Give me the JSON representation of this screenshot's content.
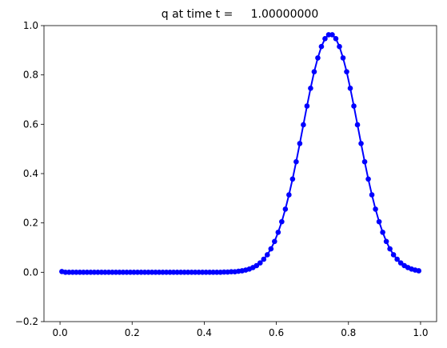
{
  "chart_data": {
    "type": "line",
    "title": "q at time t =     1.00000000",
    "x": [
      0.005,
      0.015,
      0.025,
      0.035,
      0.045,
      0.055,
      0.065,
      0.075,
      0.085,
      0.095,
      0.105,
      0.115,
      0.125,
      0.135,
      0.145,
      0.155,
      0.165,
      0.175,
      0.185,
      0.195,
      0.205,
      0.215,
      0.225,
      0.235,
      0.245,
      0.255,
      0.265,
      0.275,
      0.285,
      0.295,
      0.305,
      0.315,
      0.325,
      0.335,
      0.345,
      0.355,
      0.365,
      0.375,
      0.385,
      0.395,
      0.405,
      0.415,
      0.425,
      0.435,
      0.445,
      0.455,
      0.465,
      0.475,
      0.485,
      0.495,
      0.505,
      0.515,
      0.525,
      0.535,
      0.545,
      0.555,
      0.565,
      0.575,
      0.585,
      0.595,
      0.605,
      0.615,
      0.625,
      0.635,
      0.645,
      0.655,
      0.665,
      0.675,
      0.685,
      0.695,
      0.705,
      0.715,
      0.725,
      0.735,
      0.745,
      0.755,
      0.765,
      0.775,
      0.785,
      0.795,
      0.805,
      0.815,
      0.825,
      0.835,
      0.845,
      0.855,
      0.865,
      0.875,
      0.885,
      0.895,
      0.905,
      0.915,
      0.925,
      0.935,
      0.945,
      0.955,
      0.965,
      0.975,
      0.985,
      0.995
    ],
    "series": [
      {
        "color": "#0000ff",
        "values": [
          0.003,
          0,
          0,
          0,
          0,
          0,
          0,
          0,
          0,
          0,
          0,
          0,
          0,
          0,
          0,
          0,
          0,
          0,
          0,
          0,
          0,
          0,
          0,
          0,
          0,
          0,
          0,
          0,
          0,
          0,
          0,
          0,
          0,
          0,
          0,
          0,
          0,
          0,
          0,
          0,
          0,
          0,
          0,
          0,
          0,
          0.001,
          0.001,
          0.002,
          0.002,
          0.004,
          0.006,
          0.009,
          0.013,
          0.019,
          0.027,
          0.038,
          0.053,
          0.071,
          0.095,
          0.125,
          0.162,
          0.205,
          0.256,
          0.314,
          0.378,
          0.448,
          0.522,
          0.598,
          0.674,
          0.746,
          0.813,
          0.869,
          0.915,
          0.947,
          0.963,
          0.963,
          0.947,
          0.915,
          0.869,
          0.813,
          0.746,
          0.674,
          0.598,
          0.522,
          0.448,
          0.378,
          0.314,
          0.256,
          0.205,
          0.162,
          0.125,
          0.095,
          0.071,
          0.053,
          0.038,
          0.027,
          0.019,
          0.013,
          0.009,
          0.006
        ]
      }
    ],
    "xlim": [
      -0.0445,
      1.0445
    ],
    "ylim": [
      -0.2,
      1.0
    ],
    "xticks": [
      {
        "value": 0,
        "label": "0.0"
      },
      0.2,
      0.4,
      0.6,
      0.8,
      {
        "value": 1,
        "label": "1.0"
      }
    ],
    "yticks": [
      {
        "value": -0.2,
        "label": "−0.2"
      },
      {
        "value": 0,
        "label": "0.0"
      },
      0.2,
      0.4,
      0.6,
      0.8,
      {
        "value": 1,
        "label": "1.0"
      }
    ],
    "grid": false
  }
}
